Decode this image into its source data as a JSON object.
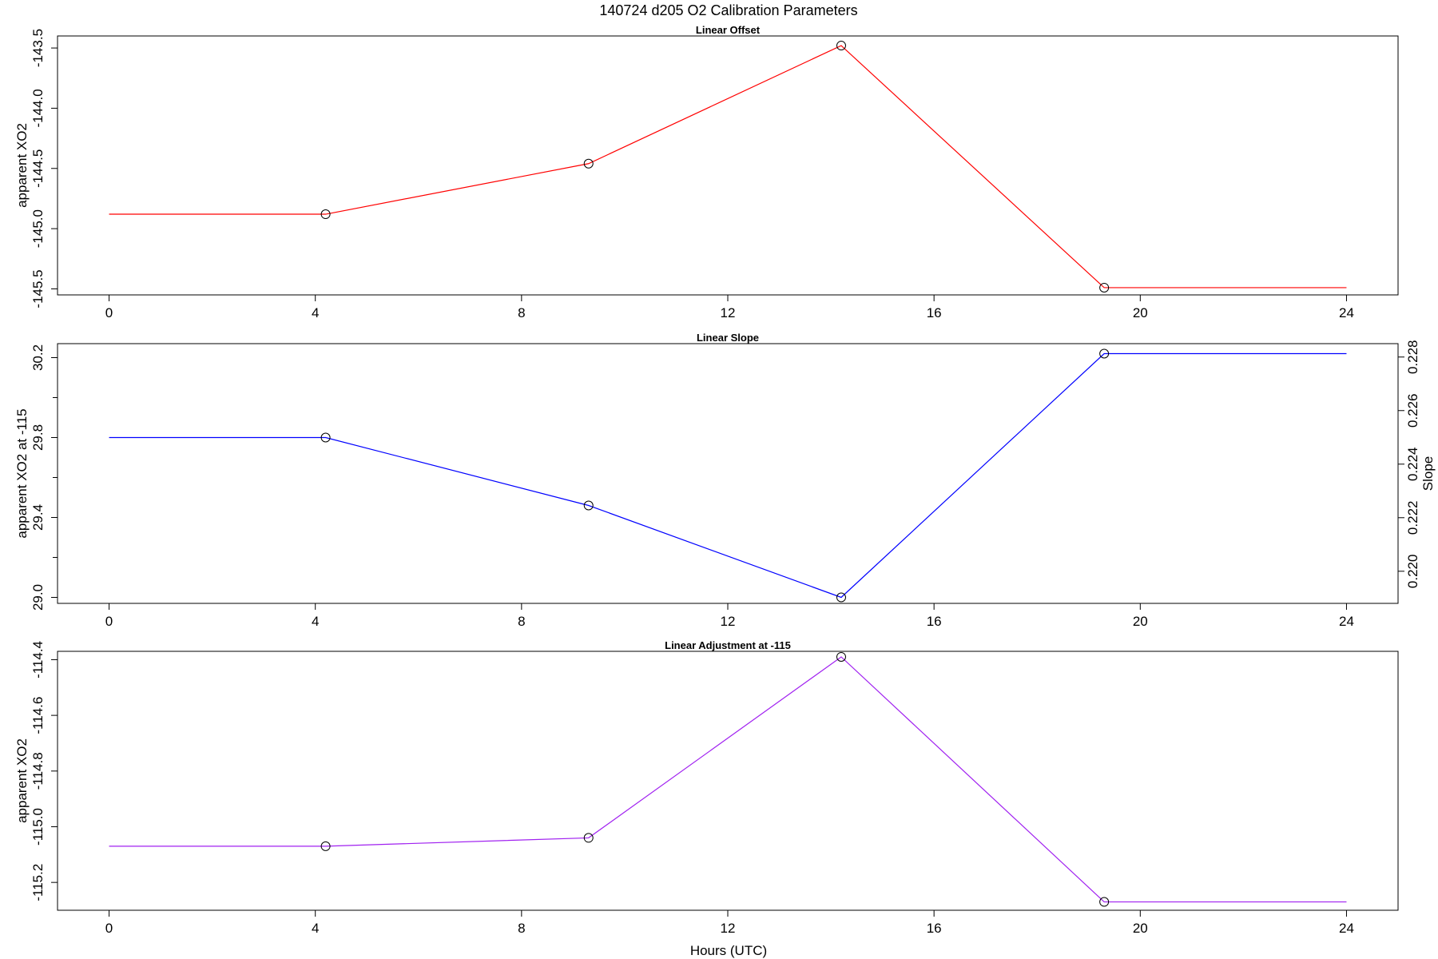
{
  "figure": {
    "title": "140724   d205   O2 Calibration Parameters",
    "xlabel": "Hours (UTC)"
  },
  "chart_data": [
    {
      "type": "line",
      "title": "Linear Offset",
      "xlabel": "Hours (UTC)",
      "ylabel": "apparent XO2",
      "xlim": [
        -1,
        25
      ],
      "ylim": [
        -145.55,
        -143.4
      ],
      "x_ticks": [
        0,
        4,
        8,
        12,
        16,
        20,
        24
      ],
      "y_ticks": [
        -145.5,
        -145.0,
        -144.5,
        -144.0,
        -143.5
      ],
      "y_tick_labels": [
        "-145.5",
        "-145.0",
        "-144.5",
        "-144.0",
        "-143.5"
      ],
      "grid": false,
      "series": [
        {
          "color": "#ff0000",
          "x": [
            0,
            4.2,
            9.3,
            14.2,
            19.3,
            24
          ],
          "y": [
            -144.88,
            -144.88,
            -144.46,
            -143.48,
            -145.49,
            -145.49
          ],
          "markers": [
            false,
            true,
            true,
            true,
            true,
            false
          ]
        }
      ]
    },
    {
      "type": "line",
      "title": "Linear Slope",
      "xlabel": "Hours (UTC)",
      "ylabel": "apparent XO2 at -115",
      "ylabel_right": "Slope",
      "xlim": [
        -1,
        25
      ],
      "ylim": [
        28.97,
        30.27
      ],
      "x_ticks": [
        0,
        4,
        8,
        12,
        16,
        20,
        24
      ],
      "y_ticks": [
        29.0,
        29.4,
        29.8,
        30.2
      ],
      "y_tick_labels": [
        "29.0",
        "29.4",
        "29.8",
        "30.2"
      ],
      "y_minor_ticks": [
        29.2,
        29.6,
        30.0
      ],
      "y2_ticks": [
        0.22,
        0.222,
        0.224,
        0.226,
        0.228
      ],
      "y2_tick_labels": [
        "0.220",
        "0.222",
        "0.224",
        "0.226",
        "0.228"
      ],
      "y2_range_at_ylim": [
        0.2188,
        0.2285
      ],
      "grid": false,
      "series": [
        {
          "color": "#0000ff",
          "x": [
            0,
            4.2,
            9.3,
            14.2,
            19.3,
            24
          ],
          "y": [
            29.8,
            29.8,
            29.46,
            29.0,
            30.22,
            30.22
          ],
          "markers": [
            false,
            true,
            true,
            true,
            true,
            false
          ]
        }
      ]
    },
    {
      "type": "line",
      "title": "Linear Adjustment at -115",
      "xlabel": "Hours (UTC)",
      "ylabel": "apparent XO2",
      "xlim": [
        -1,
        25
      ],
      "ylim": [
        -115.3,
        -114.37
      ],
      "x_ticks": [
        0,
        4,
        8,
        12,
        16,
        20,
        24
      ],
      "y_ticks": [
        -115.2,
        -115.0,
        -114.8,
        -114.6,
        -114.4
      ],
      "y_tick_labels": [
        "-115.2",
        "-115.0",
        "-114.8",
        "-114.6",
        "-114.4"
      ],
      "grid": false,
      "series": [
        {
          "color": "#a020f0",
          "x": [
            0,
            4.2,
            9.3,
            14.2,
            19.3,
            24
          ],
          "y": [
            -115.07,
            -115.07,
            -115.04,
            -114.39,
            -115.27,
            -115.27
          ],
          "markers": [
            false,
            true,
            true,
            true,
            true,
            false
          ]
        }
      ]
    }
  ]
}
